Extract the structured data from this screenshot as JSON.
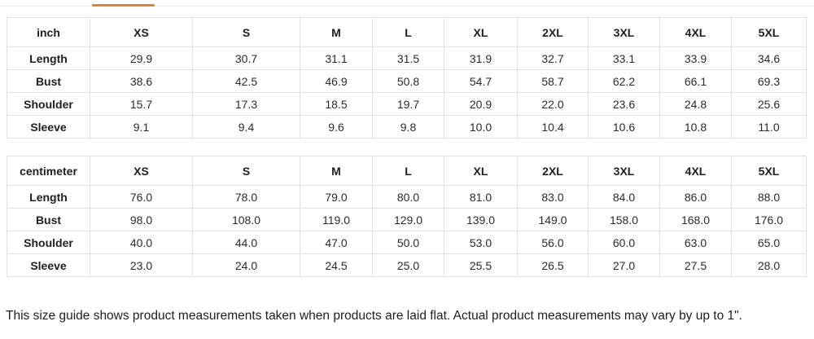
{
  "accent_color": "#cf8a3e",
  "tables": [
    {
      "unit": "inch",
      "columns": [
        "XS",
        "S",
        "M",
        "L",
        "XL",
        "2XL",
        "3XL",
        "4XL",
        "5XL"
      ],
      "rows": [
        {
          "label": "Length",
          "values": [
            "29.9",
            "30.7",
            "31.1",
            "31.5",
            "31.9",
            "32.7",
            "33.1",
            "33.9",
            "34.6"
          ]
        },
        {
          "label": "Bust",
          "values": [
            "38.6",
            "42.5",
            "46.9",
            "50.8",
            "54.7",
            "58.7",
            "62.2",
            "66.1",
            "69.3"
          ]
        },
        {
          "label": "Shoulder",
          "values": [
            "15.7",
            "17.3",
            "18.5",
            "19.7",
            "20.9",
            "22.0",
            "23.6",
            "24.8",
            "25.6"
          ]
        },
        {
          "label": "Sleeve",
          "values": [
            "9.1",
            "9.4",
            "9.6",
            "9.8",
            "10.0",
            "10.4",
            "10.6",
            "10.8",
            "11.0"
          ]
        }
      ]
    },
    {
      "unit": "centimeter",
      "columns": [
        "XS",
        "S",
        "M",
        "L",
        "XL",
        "2XL",
        "3XL",
        "4XL",
        "5XL"
      ],
      "rows": [
        {
          "label": "Length",
          "values": [
            "76.0",
            "78.0",
            "79.0",
            "80.0",
            "81.0",
            "83.0",
            "84.0",
            "86.0",
            "88.0"
          ]
        },
        {
          "label": "Bust",
          "values": [
            "98.0",
            "108.0",
            "119.0",
            "129.0",
            "139.0",
            "149.0",
            "158.0",
            "168.0",
            "176.0"
          ]
        },
        {
          "label": "Shoulder",
          "values": [
            "40.0",
            "44.0",
            "47.0",
            "50.0",
            "53.0",
            "56.0",
            "60.0",
            "63.0",
            "65.0"
          ]
        },
        {
          "label": "Sleeve",
          "values": [
            "23.0",
            "24.0",
            "24.5",
            "25.0",
            "25.5",
            "26.5",
            "27.0",
            "27.5",
            "28.0"
          ]
        }
      ]
    }
  ],
  "footer": {
    "note": "This size guide shows product measurements taken when products are laid flat. Actual product measurements may vary by up to 1\"."
  }
}
